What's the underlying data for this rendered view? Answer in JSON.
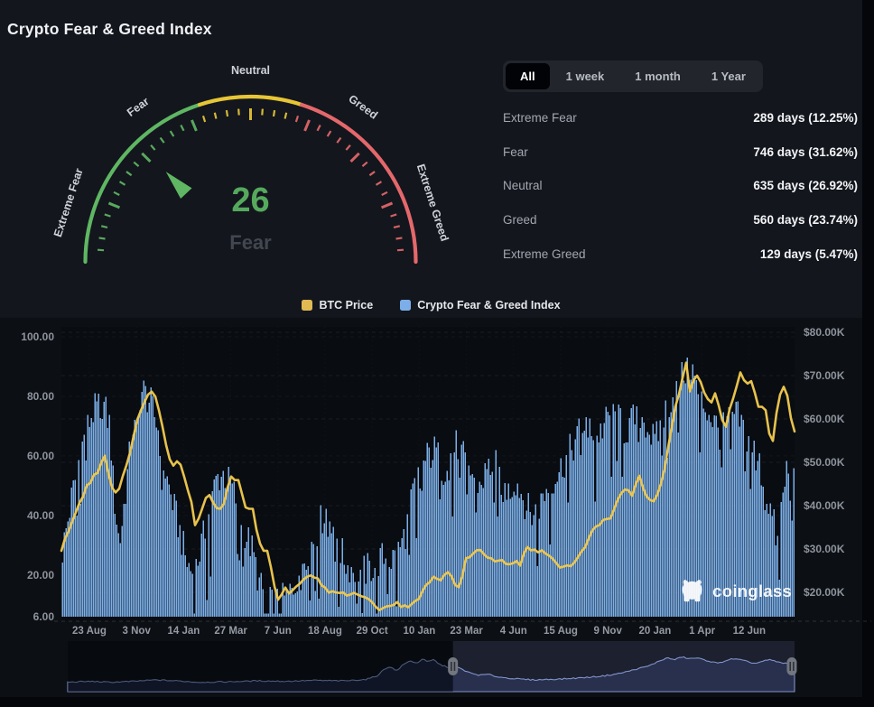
{
  "page": {
    "title": "Crypto Fear & Greed Index"
  },
  "gauge": {
    "value": 26,
    "classification": "Fear",
    "min": 0,
    "max": 100,
    "zones": [
      {
        "label": "Extreme Fear",
        "from": 0,
        "to": 40,
        "color": "#5fb663"
      },
      {
        "label": "Neutral zone",
        "from": 40,
        "to": 60,
        "color": "#e7c636"
      },
      {
        "label": "Greed zone",
        "from": 60,
        "to": 100,
        "color": "#e4686b"
      }
    ],
    "labels": [
      "Extreme Fear",
      "Fear",
      "Neutral",
      "Greed",
      "Extreme Greed"
    ],
    "value_color": "#55a95c",
    "classification_color": "#42474f"
  },
  "range_tabs": {
    "options": [
      "All",
      "1 week",
      "1 month",
      "1 Year"
    ],
    "selected": "All"
  },
  "stats": [
    {
      "label": "Extreme Fear",
      "value": "289 days (12.25%)"
    },
    {
      "label": "Fear",
      "value": "746 days (31.62%)"
    },
    {
      "label": "Neutral",
      "value": "635 days (26.92%)"
    },
    {
      "label": "Greed",
      "value": "560 days (23.74%)"
    },
    {
      "label": "Extreme Greed",
      "value": "129 days (5.47%)"
    }
  ],
  "legend": [
    {
      "label": "BTC Price",
      "color": "#e0ba52"
    },
    {
      "label": "Crypto Fear & Greed Index",
      "color": "#7cafe9"
    }
  ],
  "watermark": {
    "text": "coinglass"
  },
  "chart_data": {
    "type": "bar+line",
    "x_ticks": [
      "23 Aug",
      "3 Nov",
      "14 Jan",
      "27 Mar",
      "7 Jun",
      "18 Aug",
      "29 Oct",
      "10 Jan",
      "23 Mar",
      "4 Jun",
      "15 Aug",
      "9 Nov",
      "20 Jan",
      "1 Apr",
      "12 Jun"
    ],
    "left_axis": {
      "title": "Fear & Greed Index",
      "tick_labels": [
        "100.00",
        "80.00",
        "60.00",
        "40.00",
        "20.00",
        "6.00"
      ],
      "tick_values": [
        100,
        80,
        60,
        40,
        20,
        6
      ],
      "min": 6,
      "max": 100
    },
    "right_axis": {
      "title": "BTC Price",
      "tick_labels": [
        "$80.00K",
        "$70.00K",
        "$60.00K",
        "$50.00K",
        "$40.00K",
        "$30.00K",
        "$20.00K"
      ],
      "tick_values_k": [
        80,
        70,
        60,
        50,
        40,
        30,
        20
      ]
    },
    "series": [
      {
        "name": "Crypto Fear & Greed Index",
        "type": "bar",
        "axis": "left",
        "color": "#7cafe9",
        "points": [
          [
            0,
            28
          ],
          [
            0.012,
            45
          ],
          [
            0.025,
            62
          ],
          [
            0.04,
            74
          ],
          [
            0.055,
            78
          ],
          [
            0.065,
            70
          ],
          [
            0.07,
            48
          ],
          [
            0.078,
            30
          ],
          [
            0.088,
            52
          ],
          [
            0.1,
            78
          ],
          [
            0.11,
            82
          ],
          [
            0.12,
            78
          ],
          [
            0.13,
            70
          ],
          [
            0.14,
            55
          ],
          [
            0.15,
            45
          ],
          [
            0.16,
            35
          ],
          [
            0.17,
            24
          ],
          [
            0.18,
            20
          ],
          [
            0.19,
            30
          ],
          [
            0.2,
            40
          ],
          [
            0.21,
            52
          ],
          [
            0.22,
            54
          ],
          [
            0.23,
            50
          ],
          [
            0.24,
            44
          ],
          [
            0.25,
            34
          ],
          [
            0.26,
            28
          ],
          [
            0.27,
            16
          ],
          [
            0.285,
            10
          ],
          [
            0.3,
            11
          ],
          [
            0.315,
            15
          ],
          [
            0.33,
            26
          ],
          [
            0.345,
            33
          ],
          [
            0.36,
            42
          ],
          [
            0.37,
            38
          ],
          [
            0.38,
            28
          ],
          [
            0.39,
            23
          ],
          [
            0.4,
            22
          ],
          [
            0.41,
            21
          ],
          [
            0.42,
            22
          ],
          [
            0.43,
            24
          ],
          [
            0.44,
            26
          ],
          [
            0.45,
            25
          ],
          [
            0.46,
            28
          ],
          [
            0.47,
            35
          ],
          [
            0.48,
            48
          ],
          [
            0.49,
            55
          ],
          [
            0.5,
            60
          ],
          [
            0.51,
            62
          ],
          [
            0.52,
            55
          ],
          [
            0.53,
            60
          ],
          [
            0.54,
            64
          ],
          [
            0.55,
            58
          ],
          [
            0.56,
            54
          ],
          [
            0.57,
            50
          ],
          [
            0.58,
            55
          ],
          [
            0.59,
            58
          ],
          [
            0.6,
            52
          ],
          [
            0.61,
            48
          ],
          [
            0.62,
            52
          ],
          [
            0.63,
            46
          ],
          [
            0.64,
            40
          ],
          [
            0.65,
            42
          ],
          [
            0.66,
            48
          ],
          [
            0.67,
            52
          ],
          [
            0.68,
            55
          ],
          [
            0.69,
            60
          ],
          [
            0.7,
            64
          ],
          [
            0.71,
            70
          ],
          [
            0.72,
            72
          ],
          [
            0.73,
            66
          ],
          [
            0.74,
            70
          ],
          [
            0.75,
            74
          ],
          [
            0.76,
            72
          ],
          [
            0.77,
            68
          ],
          [
            0.78,
            72
          ],
          [
            0.79,
            74
          ],
          [
            0.8,
            70
          ],
          [
            0.81,
            64
          ],
          [
            0.82,
            72
          ],
          [
            0.83,
            78
          ],
          [
            0.84,
            83
          ],
          [
            0.85,
            88
          ],
          [
            0.86,
            90
          ],
          [
            0.87,
            80
          ],
          [
            0.88,
            76
          ],
          [
            0.89,
            72
          ],
          [
            0.9,
            67
          ],
          [
            0.91,
            72
          ],
          [
            0.92,
            74
          ],
          [
            0.93,
            70
          ],
          [
            0.94,
            64
          ],
          [
            0.95,
            60
          ],
          [
            0.96,
            50
          ],
          [
            0.97,
            40
          ],
          [
            0.978,
            30
          ],
          [
            0.985,
            48
          ],
          [
            0.992,
            64
          ],
          [
            1,
            52
          ]
        ]
      },
      {
        "name": "BTC Price",
        "type": "line",
        "axis": "right",
        "color": "#eec84e",
        "unit": "K USD",
        "points": [
          [
            0,
            29.5
          ],
          [
            0.02,
            39
          ],
          [
            0.038,
            45.5
          ],
          [
            0.05,
            48
          ],
          [
            0.058,
            52.5
          ],
          [
            0.066,
            45.5
          ],
          [
            0.075,
            42.5
          ],
          [
            0.09,
            50
          ],
          [
            0.1,
            57
          ],
          [
            0.108,
            62
          ],
          [
            0.115,
            64
          ],
          [
            0.122,
            67.5
          ],
          [
            0.132,
            63
          ],
          [
            0.14,
            57
          ],
          [
            0.15,
            49
          ],
          [
            0.16,
            50.5
          ],
          [
            0.168,
            46.5
          ],
          [
            0.176,
            42
          ],
          [
            0.183,
            35.5
          ],
          [
            0.192,
            38.5
          ],
          [
            0.2,
            44
          ],
          [
            0.21,
            39.5
          ],
          [
            0.22,
            38.8
          ],
          [
            0.23,
            47
          ],
          [
            0.242,
            45.5
          ],
          [
            0.252,
            40
          ],
          [
            0.262,
            39
          ],
          [
            0.272,
            30.5
          ],
          [
            0.282,
            29.5
          ],
          [
            0.29,
            22.5
          ],
          [
            0.296,
            18.8
          ],
          [
            0.305,
            20.8
          ],
          [
            0.315,
            19.8
          ],
          [
            0.325,
            21.8
          ],
          [
            0.335,
            23.3
          ],
          [
            0.345,
            24
          ],
          [
            0.357,
            21.6
          ],
          [
            0.365,
            20.1
          ],
          [
            0.375,
            19.5
          ],
          [
            0.39,
            19.6
          ],
          [
            0.4,
            20.4
          ],
          [
            0.412,
            19.2
          ],
          [
            0.422,
            18.1
          ],
          [
            0.43,
            16.5
          ],
          [
            0.44,
            16.2
          ],
          [
            0.45,
            17
          ],
          [
            0.46,
            17.2
          ],
          [
            0.47,
            16.7
          ],
          [
            0.48,
            16.9
          ],
          [
            0.488,
            18.8
          ],
          [
            0.497,
            21
          ],
          [
            0.507,
            23.2
          ],
          [
            0.517,
            23.1
          ],
          [
            0.527,
            24.6
          ],
          [
            0.537,
            22.3
          ],
          [
            0.545,
            20.5
          ],
          [
            0.552,
            27.4
          ],
          [
            0.56,
            28.3
          ],
          [
            0.57,
            30
          ],
          [
            0.58,
            28.6
          ],
          [
            0.59,
            27.8
          ],
          [
            0.6,
            27.1
          ],
          [
            0.61,
            27
          ],
          [
            0.62,
            27.3
          ],
          [
            0.628,
            26
          ],
          [
            0.635,
            30.4
          ],
          [
            0.645,
            30.2
          ],
          [
            0.655,
            29.3
          ],
          [
            0.665,
            29.4
          ],
          [
            0.675,
            26.2
          ],
          [
            0.685,
            26
          ],
          [
            0.695,
            26.3
          ],
          [
            0.705,
            27.2
          ],
          [
            0.715,
            30
          ],
          [
            0.725,
            34.4
          ],
          [
            0.735,
            35.2
          ],
          [
            0.745,
            37.2
          ],
          [
            0.752,
            36.8
          ],
          [
            0.762,
            42.2
          ],
          [
            0.77,
            43.8
          ],
          [
            0.78,
            42.6
          ],
          [
            0.79,
            46.4
          ],
          [
            0.798,
            43
          ],
          [
            0.808,
            40.2
          ],
          [
            0.818,
            43.2
          ],
          [
            0.828,
            51.5
          ],
          [
            0.838,
            62
          ],
          [
            0.848,
            68.5
          ],
          [
            0.855,
            73
          ],
          [
            0.86,
            64.8
          ],
          [
            0.865,
            70
          ],
          [
            0.872,
            69.6
          ],
          [
            0.88,
            66
          ],
          [
            0.887,
            63.8
          ],
          [
            0.895,
            66.2
          ],
          [
            0.902,
            60.8
          ],
          [
            0.908,
            58
          ],
          [
            0.915,
            63
          ],
          [
            0.922,
            67
          ],
          [
            0.928,
            71.4
          ],
          [
            0.935,
            68.4
          ],
          [
            0.942,
            69
          ],
          [
            0.948,
            66
          ],
          [
            0.955,
            61
          ],
          [
            0.96,
            64.8
          ],
          [
            0.967,
            57.4
          ],
          [
            0.972,
            54.2
          ],
          [
            0.98,
            63.6
          ],
          [
            0.986,
            67.8
          ],
          [
            0.992,
            66
          ],
          [
            1,
            57.5
          ]
        ]
      }
    ],
    "navigator": {
      "selection_start_frac": 0.53,
      "selection_end_frac": 1.0,
      "points": [
        [
          0,
          0.2
        ],
        [
          0.03,
          0.22
        ],
        [
          0.06,
          0.2
        ],
        [
          0.09,
          0.22
        ],
        [
          0.12,
          0.25
        ],
        [
          0.15,
          0.23
        ],
        [
          0.18,
          0.2
        ],
        [
          0.22,
          0.21
        ],
        [
          0.26,
          0.23
        ],
        [
          0.3,
          0.22
        ],
        [
          0.34,
          0.24
        ],
        [
          0.38,
          0.23
        ],
        [
          0.41,
          0.26
        ],
        [
          0.425,
          0.33
        ],
        [
          0.435,
          0.47
        ],
        [
          0.443,
          0.54
        ],
        [
          0.452,
          0.44
        ],
        [
          0.462,
          0.58
        ],
        [
          0.472,
          0.66
        ],
        [
          0.48,
          0.6
        ],
        [
          0.488,
          0.7
        ],
        [
          0.495,
          0.63
        ],
        [
          0.503,
          0.68
        ],
        [
          0.513,
          0.57
        ],
        [
          0.523,
          0.52
        ],
        [
          0.533,
          0.55
        ],
        [
          0.543,
          0.47
        ],
        [
          0.555,
          0.39
        ],
        [
          0.567,
          0.35
        ],
        [
          0.578,
          0.37
        ],
        [
          0.59,
          0.32
        ],
        [
          0.605,
          0.29
        ],
        [
          0.62,
          0.27
        ],
        [
          0.64,
          0.25
        ],
        [
          0.66,
          0.26
        ],
        [
          0.68,
          0.27
        ],
        [
          0.7,
          0.29
        ],
        [
          0.72,
          0.31
        ],
        [
          0.74,
          0.34
        ],
        [
          0.76,
          0.39
        ],
        [
          0.78,
          0.47
        ],
        [
          0.8,
          0.55
        ],
        [
          0.815,
          0.66
        ],
        [
          0.825,
          0.72
        ],
        [
          0.835,
          0.68
        ],
        [
          0.845,
          0.74
        ],
        [
          0.855,
          0.7
        ],
        [
          0.865,
          0.72
        ],
        [
          0.875,
          0.68
        ],
        [
          0.885,
          0.64
        ],
        [
          0.895,
          0.6
        ],
        [
          0.905,
          0.66
        ],
        [
          0.915,
          0.7
        ],
        [
          0.925,
          0.68
        ],
        [
          0.935,
          0.64
        ],
        [
          0.945,
          0.6
        ],
        [
          0.955,
          0.64
        ],
        [
          0.965,
          0.68
        ],
        [
          0.975,
          0.64
        ],
        [
          0.985,
          0.6
        ],
        [
          1,
          0.62
        ]
      ]
    }
  }
}
